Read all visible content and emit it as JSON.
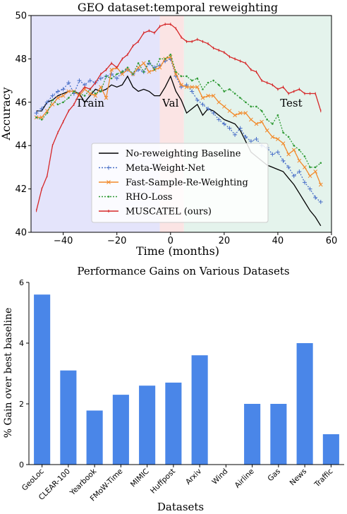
{
  "chart_data": [
    {
      "type": "line",
      "title": "GEO dataset:temporal reweighting",
      "xlabel": "Time (months)",
      "ylabel": "Accuracy",
      "xlim": [
        -52,
        60
      ],
      "ylim": [
        40,
        50
      ],
      "xticks": [
        -40,
        -20,
        0,
        20,
        40,
        60
      ],
      "yticks": [
        40,
        42,
        44,
        46,
        48,
        50
      ],
      "grid": false,
      "legend": "lower-center",
      "regions": [
        {
          "label": "Train",
          "x_start": -52,
          "x_end": -4,
          "color": "#e4e4fb"
        },
        {
          "label": "Val",
          "x_start": -4,
          "x_end": 5,
          "color": "#fbe4e4"
        },
        {
          "label": "Test",
          "x_start": 5,
          "x_end": 60,
          "color": "#e4f3ec"
        }
      ],
      "x": [
        -50,
        -48,
        -46,
        -44,
        -42,
        -40,
        -38,
        -36,
        -34,
        -32,
        -30,
        -28,
        -26,
        -24,
        -22,
        -20,
        -18,
        -16,
        -14,
        -12,
        -10,
        -8,
        -6,
        -4,
        -2,
        0,
        2,
        4,
        6,
        8,
        10,
        12,
        14,
        16,
        18,
        20,
        22,
        24,
        26,
        28,
        30,
        32,
        34,
        36,
        38,
        40,
        42,
        44,
        46,
        48,
        50,
        52,
        54,
        56
      ],
      "series": [
        {
          "name": "No-reweighting Baseline",
          "color": "#000000",
          "dash": "solid",
          "marker": "none",
          "values": [
            45.6,
            45.6,
            46.0,
            46.1,
            46.3,
            46.4,
            46.5,
            46.5,
            46.4,
            46.0,
            46.3,
            46.6,
            46.5,
            46.6,
            46.8,
            46.7,
            46.8,
            47.2,
            46.7,
            46.5,
            46.6,
            46.5,
            46.3,
            46.3,
            46.7,
            47.2,
            46.5,
            46.1,
            45.5,
            45.7,
            45.9,
            45.4,
            45.7,
            45.6,
            45.4,
            45.2,
            45.1,
            45.0,
            44.7,
            44.2,
            43.7,
            43.5,
            43.3,
            43.1,
            43.0,
            42.9,
            42.8,
            42.5,
            42.2,
            41.8,
            41.4,
            41.0,
            40.7,
            40.3
          ]
        },
        {
          "name": "Meta-Weight-Net",
          "color": "#4a70c8",
          "dash": "dotted",
          "marker": "plus",
          "values": [
            45.5,
            45.7,
            46.0,
            46.3,
            46.5,
            46.6,
            46.9,
            46.4,
            47.0,
            46.8,
            47.0,
            46.9,
            47.1,
            47.2,
            47.3,
            47.1,
            47.4,
            47.5,
            47.3,
            47.5,
            47.4,
            47.8,
            47.6,
            47.7,
            47.9,
            48.0,
            47.2,
            46.7,
            46.8,
            46.5,
            46.1,
            45.9,
            45.7,
            45.5,
            45.2,
            45.0,
            44.8,
            44.5,
            44.8,
            44.4,
            44.2,
            44.3,
            44.0,
            43.9,
            43.6,
            43.7,
            43.3,
            43.0,
            42.6,
            42.8,
            42.3,
            42.0,
            41.6,
            41.4
          ]
        },
        {
          "name": "Fast-Sample-Re-Weighting",
          "color": "#f28a2a",
          "dash": "solid",
          "marker": "x",
          "values": [
            45.3,
            45.3,
            45.6,
            45.9,
            46.2,
            46.3,
            46.5,
            46.5,
            46.3,
            46.6,
            46.4,
            46.3,
            46.7,
            46.2,
            47.5,
            47.6,
            47.3,
            47.5,
            47.3,
            47.6,
            47.8,
            47.4,
            47.5,
            47.6,
            48.0,
            48.1,
            47.3,
            46.8,
            46.7,
            46.7,
            46.7,
            46.2,
            46.3,
            46.3,
            46.0,
            45.8,
            45.6,
            45.4,
            45.5,
            45.5,
            45.2,
            45.0,
            45.1,
            44.7,
            44.4,
            44.3,
            44.1,
            43.6,
            43.8,
            43.3,
            43.0,
            42.6,
            42.8,
            42.2
          ]
        },
        {
          "name": "RHO-Loss",
          "color": "#2e9a34",
          "dash": "dotted",
          "marker": "dot",
          "values": [
            45.3,
            45.2,
            45.5,
            46.1,
            45.9,
            46.0,
            46.2,
            46.5,
            46.4,
            46.3,
            46.6,
            46.4,
            46.5,
            47.2,
            47.1,
            47.3,
            47.4,
            47.6,
            47.3,
            47.8,
            47.4,
            47.9,
            47.5,
            48.0,
            48.0,
            48.2,
            47.4,
            47.2,
            47.2,
            47.0,
            47.1,
            46.6,
            46.9,
            47.0,
            46.8,
            46.5,
            46.6,
            46.4,
            46.2,
            46.0,
            45.8,
            45.8,
            45.6,
            45.2,
            45.0,
            45.4,
            44.6,
            44.4,
            44.0,
            43.8,
            43.5,
            43.0,
            43.0,
            43.2
          ]
        },
        {
          "name": "MUSCATEL (ours)",
          "color": "#d62728",
          "dash": "solid",
          "marker": "tick",
          "values": [
            41.0,
            42.0,
            42.6,
            44.0,
            44.6,
            45.1,
            45.6,
            45.9,
            46.4,
            46.7,
            46.6,
            46.9,
            47.3,
            47.5,
            47.8,
            47.6,
            48.0,
            48.2,
            48.6,
            48.8,
            49.2,
            49.3,
            49.2,
            49.5,
            49.6,
            49.6,
            49.4,
            49.0,
            48.8,
            48.8,
            48.9,
            48.8,
            48.7,
            48.5,
            48.4,
            48.3,
            48.1,
            48.0,
            47.9,
            47.8,
            47.5,
            47.4,
            47.0,
            46.9,
            46.8,
            46.6,
            46.7,
            46.4,
            46.5,
            46.6,
            46.4,
            46.4,
            46.4,
            45.6
          ]
        }
      ]
    },
    {
      "type": "bar",
      "title": "Performance Gains on Various Datasets",
      "xlabel": "Datasets",
      "ylabel": "% Gain over best baseline",
      "ylim": [
        0,
        6
      ],
      "yticks": [
        0,
        2,
        4,
        6
      ],
      "grid": false,
      "color": "#4a86e8",
      "categories": [
        "GeoLoc",
        "CLEAR-100",
        "Yearbook",
        "FMoW-Time",
        "MIMIC",
        "Huffpost",
        "Arxiv",
        "Wind",
        "Airline",
        "Gas",
        "News",
        "Traffic"
      ],
      "values": [
        5.6,
        3.1,
        1.78,
        2.3,
        2.6,
        2.7,
        3.6,
        0,
        2.0,
        2.0,
        4.0,
        1.0
      ]
    }
  ]
}
